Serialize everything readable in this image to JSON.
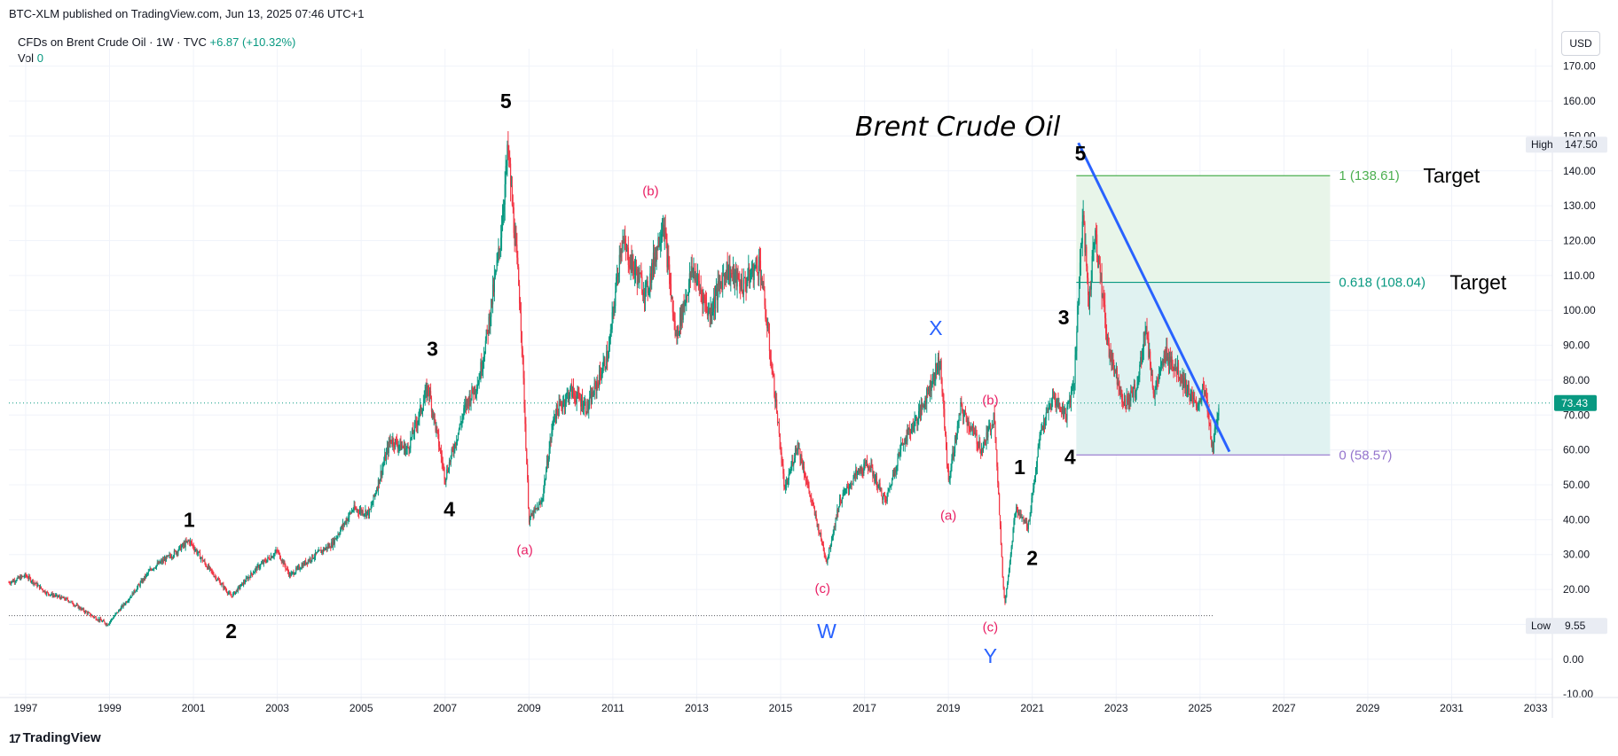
{
  "header": {
    "published": "BTC-XLM published on TradingView.com, Jun 13, 2025 07:46 UTC+1"
  },
  "legend": {
    "symbol": "CFDs on Brent Crude Oil · 1W · TVC",
    "change": "+6.87 (+10.32%)",
    "vol_label": "Vol",
    "vol_value": "0"
  },
  "toolbar": {
    "currency": "USD"
  },
  "footer": {
    "brand": "TradingView",
    "logo_glyph": "17"
  },
  "colors": {
    "up": "#089981",
    "down": "#f23645",
    "trendline": "#2962ff",
    "wave_labels": "#000000",
    "abc_labels": "#e91e63",
    "wxy_labels": "#2962ff",
    "fib_1": "#4caf50",
    "fib_0618": "#089981",
    "fib_0": "#9575cd",
    "fib_fill_top": "#e8f5e9",
    "fib_fill_bottom": "#e0f2f1"
  },
  "chart_data": {
    "type": "candlestick",
    "title": "Brent Crude Oil",
    "timeframe": "1W",
    "x_axis": {
      "range": [
        1996.6,
        2033.4
      ],
      "tick_labels": [
        "1997",
        "1999",
        "2001",
        "2003",
        "2005",
        "2007",
        "2009",
        "2011",
        "2013",
        "2015",
        "2017",
        "2019",
        "2021",
        "2023",
        "2025",
        "2027",
        "2029",
        "2031",
        "2033"
      ]
    },
    "y_axis": {
      "range": [
        -13,
        175
      ],
      "tick_labels": [
        "170.00",
        "160.00",
        "150.00",
        "140.00",
        "130.00",
        "120.00",
        "110.00",
        "100.00",
        "90.00",
        "80.00",
        "70.00",
        "60.00",
        "50.00",
        "40.00",
        "30.00",
        "20.00",
        "10.00",
        "0.00",
        "-10.00"
      ]
    },
    "price_badges": [
      {
        "label": "High",
        "value": "147.50",
        "y": 147.5
      },
      {
        "label": "Low",
        "value": "9.55",
        "y": 9.55
      }
    ],
    "last_price": {
      "value": "73.43",
      "y": 73.43
    },
    "price_path": [
      [
        1996.6,
        22
      ],
      [
        1997.0,
        24
      ],
      [
        1997.5,
        19
      ],
      [
        1998.0,
        17
      ],
      [
        1998.5,
        13
      ],
      [
        1998.95,
        10
      ],
      [
        1999.5,
        18
      ],
      [
        2000.0,
        26
      ],
      [
        2000.5,
        30
      ],
      [
        2000.9,
        34
      ],
      [
        2001.3,
        27
      ],
      [
        2001.9,
        18
      ],
      [
        2002.5,
        26
      ],
      [
        2003.0,
        31
      ],
      [
        2003.3,
        24
      ],
      [
        2003.8,
        29
      ],
      [
        2004.3,
        33
      ],
      [
        2004.8,
        43
      ],
      [
        2005.2,
        42
      ],
      [
        2005.7,
        63
      ],
      [
        2006.1,
        60
      ],
      [
        2006.6,
        78
      ],
      [
        2007.0,
        52
      ],
      [
        2007.5,
        73
      ],
      [
        2007.8,
        80
      ],
      [
        2008.0,
        93
      ],
      [
        2008.3,
        118
      ],
      [
        2008.5,
        146
      ],
      [
        2008.8,
        100
      ],
      [
        2009.0,
        40
      ],
      [
        2009.3,
        45
      ],
      [
        2009.6,
        70
      ],
      [
        2010.0,
        77
      ],
      [
        2010.4,
        72
      ],
      [
        2010.9,
        88
      ],
      [
        2011.2,
        120
      ],
      [
        2011.5,
        112
      ],
      [
        2011.8,
        105
      ],
      [
        2012.2,
        126
      ],
      [
        2012.5,
        92
      ],
      [
        2012.9,
        112
      ],
      [
        2013.3,
        99
      ],
      [
        2013.7,
        112
      ],
      [
        2014.1,
        107
      ],
      [
        2014.5,
        114
      ],
      [
        2014.9,
        72
      ],
      [
        2015.1,
        48
      ],
      [
        2015.4,
        62
      ],
      [
        2015.7,
        47
      ],
      [
        2016.1,
        28
      ],
      [
        2016.4,
        45
      ],
      [
        2016.8,
        53
      ],
      [
        2017.1,
        56
      ],
      [
        2017.5,
        45
      ],
      [
        2017.9,
        62
      ],
      [
        2018.3,
        70
      ],
      [
        2018.8,
        86
      ],
      [
        2019.0,
        51
      ],
      [
        2019.3,
        72
      ],
      [
        2019.8,
        60
      ],
      [
        2020.1,
        70
      ],
      [
        2020.3,
        22
      ],
      [
        2020.35,
        16
      ],
      [
        2020.6,
        43
      ],
      [
        2020.9,
        38
      ],
      [
        2021.2,
        65
      ],
      [
        2021.5,
        75
      ],
      [
        2021.8,
        70
      ],
      [
        2022.0,
        80
      ],
      [
        2022.2,
        128
      ],
      [
        2022.35,
        102
      ],
      [
        2022.5,
        124
      ],
      [
        2022.8,
        90
      ],
      [
        2023.0,
        82
      ],
      [
        2023.2,
        73
      ],
      [
        2023.5,
        78
      ],
      [
        2023.7,
        96
      ],
      [
        2023.9,
        76
      ],
      [
        2024.2,
        88
      ],
      [
        2024.6,
        80
      ],
      [
        2024.9,
        72
      ],
      [
        2025.1,
        78
      ],
      [
        2025.3,
        60
      ],
      [
        2025.45,
        73.43
      ]
    ],
    "min_line": {
      "y": 12.5,
      "x_end": 2025.3
    },
    "last_price_line": {
      "y": 73.43
    },
    "trendline": {
      "from": [
        2022.1,
        148
      ],
      "to": [
        2025.7,
        59.5
      ]
    },
    "fibonacci": {
      "x_start": 2022.05,
      "x_end": 2028.1,
      "levels": [
        {
          "ratio_label": "1",
          "value": 138.61,
          "text": "1 (138.61)",
          "target": "Target"
        },
        {
          "ratio_label": "0.618",
          "value": 108.04,
          "text": "0.618 (108.04)",
          "target": "Target"
        },
        {
          "ratio_label": "0",
          "value": 58.57,
          "text": "0 (58.57)",
          "target": ""
        }
      ]
    },
    "wave_labels": [
      {
        "text": "5",
        "x": 2008.45,
        "y": 158,
        "color_key": "wave_labels"
      },
      {
        "text": "3",
        "x": 2006.7,
        "y": 87,
        "color_key": "wave_labels"
      },
      {
        "text": "4",
        "x": 2007.1,
        "y": 41,
        "color_key": "wave_labels"
      },
      {
        "text": "1",
        "x": 2000.9,
        "y": 38,
        "color_key": "wave_labels"
      },
      {
        "text": "2",
        "x": 2001.9,
        "y": 6,
        "color_key": "wave_labels"
      },
      {
        "text": "(a)",
        "x": 2008.9,
        "y": 30,
        "color_key": "abc_labels"
      },
      {
        "text": "(b)",
        "x": 2011.9,
        "y": 133,
        "color_key": "abc_labels"
      },
      {
        "text": "(c)",
        "x": 2016.0,
        "y": 19,
        "color_key": "abc_labels"
      },
      {
        "text": "W",
        "x": 2016.1,
        "y": 6,
        "color_key": "wxy_labels"
      },
      {
        "text": "X",
        "x": 2018.7,
        "y": 93,
        "color_key": "wxy_labels"
      },
      {
        "text": "(a)",
        "x": 2019.0,
        "y": 40,
        "color_key": "abc_labels"
      },
      {
        "text": "(b)",
        "x": 2020.0,
        "y": 73,
        "color_key": "abc_labels"
      },
      {
        "text": "(c)",
        "x": 2020.0,
        "y": 8,
        "color_key": "abc_labels"
      },
      {
        "text": "Y",
        "x": 2020.0,
        "y": -1,
        "color_key": "wxy_labels"
      },
      {
        "text": "1",
        "x": 2020.7,
        "y": 53,
        "color_key": "wave_labels"
      },
      {
        "text": "2",
        "x": 2021.0,
        "y": 27,
        "color_key": "wave_labels"
      },
      {
        "text": "3",
        "x": 2021.75,
        "y": 96,
        "color_key": "wave_labels"
      },
      {
        "text": "4",
        "x": 2021.9,
        "y": 56,
        "color_key": "wave_labels"
      },
      {
        "text": "5",
        "x": 2022.15,
        "y": 143,
        "color_key": "wave_labels"
      }
    ]
  }
}
